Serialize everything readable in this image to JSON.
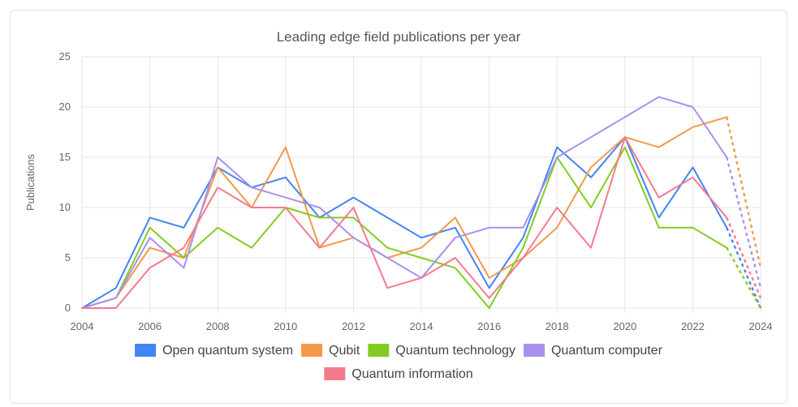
{
  "chart_data": {
    "type": "line",
    "title": "Leading edge field publications per year",
    "xlabel": "",
    "ylabel": "Publications",
    "xlim": [
      2004,
      2024
    ],
    "ylim": [
      0,
      25
    ],
    "x_ticks": [
      "2004",
      "2006",
      "2008",
      "2010",
      "2012",
      "2014",
      "2016",
      "2018",
      "2020",
      "2022",
      "2024"
    ],
    "y_ticks": [
      "0",
      "5",
      "10",
      "15",
      "20",
      "25"
    ],
    "x": [
      2004,
      2005,
      2006,
      2007,
      2008,
      2009,
      2010,
      2011,
      2012,
      2013,
      2014,
      2015,
      2016,
      2017,
      2018,
      2019,
      2020,
      2021,
      2022,
      2023,
      2024
    ],
    "projected_from_year": 2023,
    "grid": true,
    "legend_position": "bottom",
    "series": [
      {
        "name": "Open quantum system",
        "color": "#4285f4",
        "values": [
          0,
          2,
          9,
          8,
          14,
          12,
          13,
          9,
          11,
          9,
          7,
          8,
          2,
          7,
          16,
          13,
          17,
          9,
          14,
          8,
          0
        ]
      },
      {
        "name": "Qubit",
        "color": "#f5994a",
        "values": [
          0,
          1,
          6,
          5,
          14,
          10,
          16,
          6,
          7,
          5,
          6,
          9,
          3,
          5,
          8,
          14,
          17,
          16,
          18,
          19,
          4
        ]
      },
      {
        "name": "Quantum technology",
        "color": "#82cc20",
        "values": [
          0,
          1,
          8,
          5,
          8,
          6,
          10,
          9,
          9,
          6,
          5,
          4,
          0,
          6,
          15,
          10,
          16,
          8,
          8,
          6,
          0
        ]
      },
      {
        "name": "Quantum computer",
        "color": "#a890f0",
        "values": [
          0,
          1,
          7,
          4,
          15,
          12,
          11,
          10,
          7,
          5,
          3,
          7,
          8,
          8,
          15,
          17,
          19,
          21,
          20,
          15,
          2
        ]
      },
      {
        "name": "Quantum information",
        "color": "#f57a8e",
        "values": [
          0,
          0,
          4,
          6,
          12,
          10,
          10,
          6,
          10,
          2,
          3,
          5,
          1,
          5,
          10,
          6,
          17,
          11,
          13,
          9,
          1
        ]
      }
    ]
  }
}
